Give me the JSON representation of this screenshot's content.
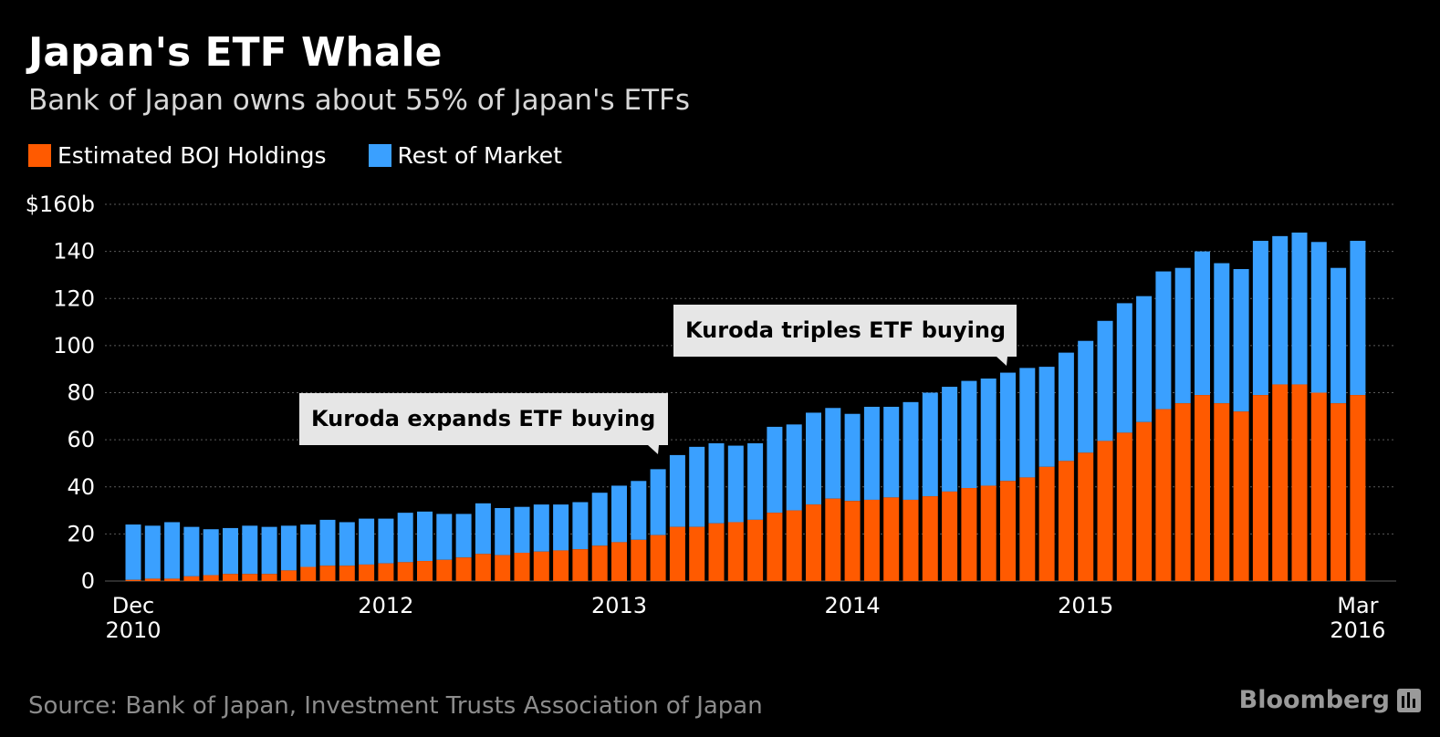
{
  "header": {
    "title": "Japan's ETF Whale",
    "subtitle": "Bank of Japan owns about 55% of Japan's ETFs"
  },
  "legend": {
    "items": [
      {
        "label": "Estimated BOJ Holdings",
        "color": "#ff5a00"
      },
      {
        "label": "Rest of Market",
        "color": "#3aa0ff"
      }
    ]
  },
  "footer": {
    "source": "Source: Bank of Japan, Investment Trusts Association of Japan",
    "brand": "Bloomberg",
    "brand_icon": "bloomberg-terminal-icon"
  },
  "colors": {
    "background": "#000000",
    "boj": "#ff5a00",
    "rest": "#3aa0ff",
    "grid": "#5a5a5a",
    "annotation_bg": "#e6e6e6"
  },
  "chart_data": {
    "type": "bar",
    "stacked": true,
    "grid": true,
    "grid_style": "dotted",
    "legend_position": "top-left",
    "ylim": [
      0,
      160
    ],
    "y_ticks": [
      {
        "value": 160,
        "label": "$160b"
      },
      {
        "value": 140,
        "label": "140"
      },
      {
        "value": 120,
        "label": "120"
      },
      {
        "value": 100,
        "label": "100"
      },
      {
        "value": 80,
        "label": "80"
      },
      {
        "value": 60,
        "label": "60"
      },
      {
        "value": 40,
        "label": "40"
      },
      {
        "value": 20,
        "label": "20"
      },
      {
        "value": 0,
        "label": "0"
      }
    ],
    "x_ticks": [
      {
        "index": 0,
        "label": "Dec",
        "sublabel": "2010"
      },
      {
        "index": 13,
        "label": "2012",
        "sublabel": ""
      },
      {
        "index": 25,
        "label": "2013",
        "sublabel": ""
      },
      {
        "index": 37,
        "label": "2014",
        "sublabel": ""
      },
      {
        "index": 49,
        "label": "2015",
        "sublabel": ""
      },
      {
        "index": 63,
        "label": "Mar",
        "sublabel": "2016"
      }
    ],
    "series": [
      {
        "name": "Estimated BOJ Holdings",
        "values": [
          0.5,
          1,
          1,
          2,
          2.5,
          3,
          3,
          3,
          4.5,
          6,
          6.5,
          6.5,
          7,
          7.5,
          8,
          8.5,
          9,
          10,
          11.5,
          11,
          12,
          12.5,
          13,
          13.5,
          15,
          16.5,
          17.5,
          19.5,
          23,
          23,
          24.5,
          25,
          26,
          29,
          30,
          32.5,
          35,
          34,
          34.5,
          35.5,
          34.5,
          36,
          38,
          39.5,
          40.5,
          42.5,
          44,
          48.5,
          51,
          54.5,
          59.5,
          63,
          67.5,
          73,
          75.5,
          79,
          75.5,
          72,
          79,
          83.5,
          83.5,
          80,
          75.5,
          79
        ]
      },
      {
        "name": "Rest of Market",
        "values": [
          23.5,
          22.5,
          24,
          21,
          19.5,
          19.5,
          20.5,
          20,
          19,
          18,
          19.5,
          18.5,
          19.5,
          19,
          21,
          21,
          19.5,
          18.5,
          21.5,
          20,
          19.5,
          20,
          19.5,
          20,
          22.5,
          24,
          25,
          28,
          30.5,
          34,
          34,
          32.5,
          32.5,
          36.5,
          36.5,
          39,
          38.5,
          37,
          39.5,
          38.5,
          41.5,
          44,
          44.5,
          45.5,
          45.5,
          46,
          46.5,
          42.5,
          46,
          47.5,
          51,
          55,
          53.5,
          58.5,
          57.5,
          61,
          59.5,
          60.5,
          65.5,
          63,
          64.5,
          64,
          57.5,
          65.5
        ]
      }
    ],
    "annotations": [
      {
        "text": "Kuroda expands ETF buying",
        "index": 27
      },
      {
        "text": "Kuroda triples ETF buying",
        "index": 45
      }
    ]
  }
}
